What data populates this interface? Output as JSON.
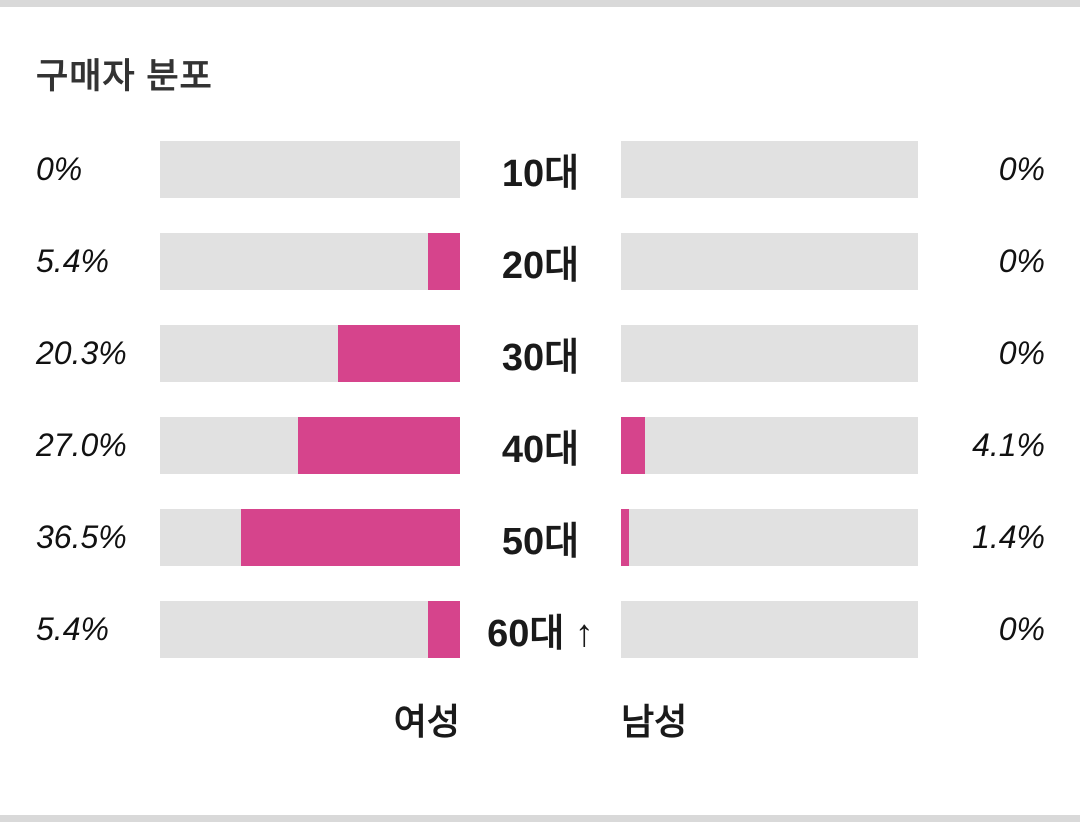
{
  "header": {
    "title": "구매자 분포"
  },
  "colors": {
    "accent": "#d6448c",
    "track": "#e1e1e1",
    "text": "#1f1f1f",
    "title": "#333333",
    "border": "#d9d9d9"
  },
  "chart_data": {
    "type": "bar",
    "subtype": "butterfly",
    "title": "구매자 분포",
    "orientation": "horizontal",
    "categories": [
      "10대",
      "20대",
      "30대",
      "40대",
      "50대",
      "60대 ↑"
    ],
    "series": [
      {
        "name": "여성",
        "side": "left",
        "values": [
          0,
          5.4,
          20.3,
          27.0,
          36.5,
          5.4
        ],
        "labels": [
          "0%",
          "5.4%",
          "20.3%",
          "27.0%",
          "36.5%",
          "5.4%"
        ]
      },
      {
        "name": "남성",
        "side": "right",
        "values": [
          0,
          0,
          0,
          4.1,
          1.4,
          0
        ],
        "labels": [
          "0%",
          "0%",
          "0%",
          "4.1%",
          "1.4%",
          "0%"
        ]
      }
    ],
    "xlim": [
      0,
      50
    ],
    "grid": false,
    "legend_position": "bottom"
  }
}
